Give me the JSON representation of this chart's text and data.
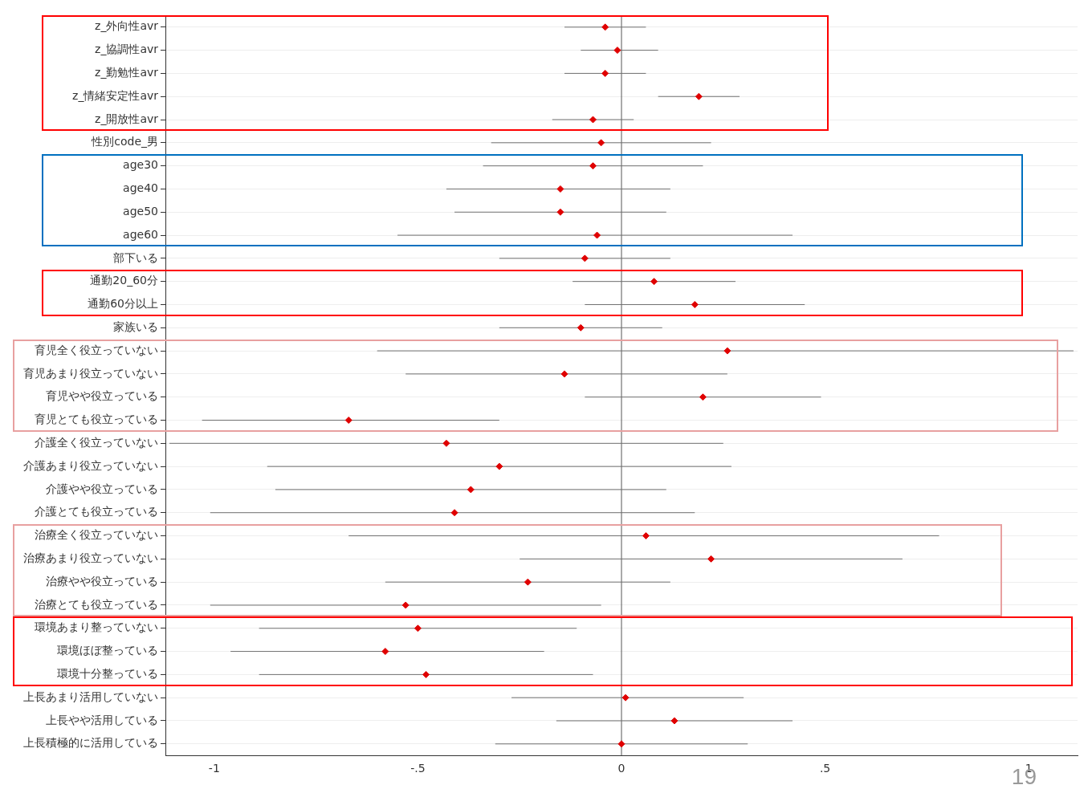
{
  "chart_data": {
    "type": "scatter",
    "orientation": "horizontal",
    "marker": "diamond",
    "color": "#e00000",
    "grid": "y",
    "categories": [
      "z_外向性avr",
      "z_協調性avr",
      "z_勤勉性avr",
      "z_情緒安定性avr",
      "z_開放性avr",
      "性別code_男",
      "age30",
      "age40",
      "age50",
      "age60",
      "部下いる",
      "通勤20_60分",
      "通勤60分以上",
      "家族いる",
      "育児全く役立っていない",
      "育児あまり役立っていない",
      "育児やや役立っている",
      "育児とても役立っている",
      "介護全く役立っていない",
      "介護あまり役立っていない",
      "介護やや役立っている",
      "介護とても役立っている",
      "治療全く役立っていない",
      "治療あまり役立っていない",
      "治療やや役立っている",
      "治療とても役立っている",
      "環境あまり整っていない",
      "環境ほぼ整っている",
      "環境十分整っている",
      "上長あまり活用していない",
      "上長やや活用している",
      "上長積極的に活用している"
    ],
    "values": [
      -0.04,
      -0.01,
      -0.04,
      0.19,
      -0.07,
      -0.05,
      -0.07,
      -0.15,
      -0.15,
      -0.06,
      -0.09,
      0.08,
      0.18,
      -0.1,
      0.26,
      -0.14,
      0.2,
      -0.67,
      -0.43,
      -0.3,
      -0.37,
      -0.41,
      0.06,
      0.22,
      -0.23,
      -0.53,
      -0.5,
      -0.58,
      -0.48,
      0.01,
      0.13,
      0.0
    ],
    "errors": [
      [
        -0.14,
        0.06
      ],
      [
        -0.1,
        0.09
      ],
      [
        -0.14,
        0.06
      ],
      [
        0.09,
        0.29
      ],
      [
        -0.17,
        0.03
      ],
      [
        -0.32,
        0.22
      ],
      [
        -0.34,
        0.2
      ],
      [
        -0.43,
        0.12
      ],
      [
        -0.41,
        0.11
      ],
      [
        -0.55,
        0.42
      ],
      [
        -0.3,
        0.12
      ],
      [
        -0.12,
        0.28
      ],
      [
        -0.09,
        0.45
      ],
      [
        -0.3,
        0.1
      ],
      [
        -0.6,
        1.11
      ],
      [
        -0.53,
        0.26
      ],
      [
        -0.09,
        0.49
      ],
      [
        -1.03,
        -0.3
      ],
      [
        -1.11,
        0.25
      ],
      [
        -0.87,
        0.27
      ],
      [
        -0.85,
        0.11
      ],
      [
        -1.01,
        0.18
      ],
      [
        -0.67,
        0.78
      ],
      [
        -0.25,
        0.69
      ],
      [
        -0.58,
        0.12
      ],
      [
        -1.01,
        -0.05
      ],
      [
        -0.89,
        -0.11
      ],
      [
        -0.96,
        -0.19
      ],
      [
        -0.89,
        -0.07
      ],
      [
        -0.27,
        0.3
      ],
      [
        -0.16,
        0.42
      ],
      [
        -0.31,
        0.31
      ]
    ],
    "xlim": [
      -1.12,
      1.12
    ],
    "xticks": [
      {
        "value": -1,
        "label": "-1"
      },
      {
        "value": -0.5,
        "label": "-.5"
      },
      {
        "value": 0,
        "label": "0"
      },
      {
        "value": 0.5,
        "label": ".5"
      },
      {
        "value": 1,
        "label": "1"
      }
    ],
    "ref_lines": [
      {
        "axis": "x",
        "value": 0,
        "color": "#555555"
      }
    ],
    "annotations": [
      "19"
    ]
  }
}
